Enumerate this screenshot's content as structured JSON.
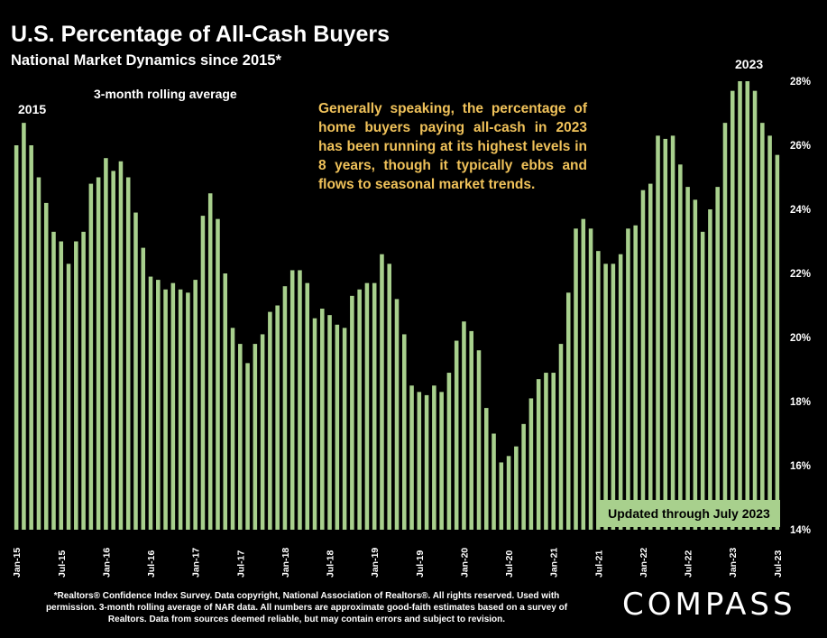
{
  "header": {
    "title": "U.S. Percentage of All-Cash Buyers",
    "subtitle": "National Market Dynamics since 2015*"
  },
  "annotations": {
    "label_2015": "2015",
    "label_2023": "2023",
    "rolling_avg": "3-month rolling average",
    "note": "Generally speaking, the percentage of home buyers paying all-cash in 2023 has been running at its highest levels in 8 years, though it typically ebbs and flows to seasonal market trends.",
    "updated": "Updated through July 2023"
  },
  "footer": {
    "footnote": "*Realtors® Confidence Index Survey. Data copyright, National Association of Realtors®. All rights reserved. Used with permission. 3-month rolling average of NAR data. All numbers are approximate good-faith estimates based on a survey of Realtors. Data from sources deemed reliable, but may contain errors and subject to revision.",
    "logo": "COMPASS"
  },
  "colors": {
    "bar": "#a8d08d",
    "background": "#000000",
    "note_text": "#f0c25a"
  },
  "chart_data": {
    "type": "bar",
    "title": "U.S. Percentage of All-Cash Buyers",
    "subtitle": "National Market Dynamics since 2015*",
    "ylabel": "",
    "ylim": [
      14,
      28
    ],
    "yticks": [
      "14%",
      "16%",
      "18%",
      "20%",
      "22%",
      "24%",
      "26%",
      "28%"
    ],
    "y_axis_side": "right",
    "grid": false,
    "xtick_labels": [
      "Jan-15",
      "Jul-15",
      "Jan-16",
      "Jul-16",
      "Jan-17",
      "Jul-17",
      "Jan-18",
      "Jul-18",
      "Jan-19",
      "Jul-19",
      "Jan-20",
      "Jul-20",
      "Jan-21",
      "Jul-21",
      "Jan-22",
      "Jul-22",
      "Jan-23",
      "Jul-23"
    ],
    "categories": [
      "Jan-15",
      "Feb-15",
      "Mar-15",
      "Apr-15",
      "May-15",
      "Jun-15",
      "Jul-15",
      "Aug-15",
      "Sep-15",
      "Oct-15",
      "Nov-15",
      "Dec-15",
      "Jan-16",
      "Feb-16",
      "Mar-16",
      "Apr-16",
      "May-16",
      "Jun-16",
      "Jul-16",
      "Aug-16",
      "Sep-16",
      "Oct-16",
      "Nov-16",
      "Dec-16",
      "Jan-17",
      "Feb-17",
      "Mar-17",
      "Apr-17",
      "May-17",
      "Jun-17",
      "Jul-17",
      "Aug-17",
      "Sep-17",
      "Oct-17",
      "Nov-17",
      "Dec-17",
      "Jan-18",
      "Feb-18",
      "Mar-18",
      "Apr-18",
      "May-18",
      "Jun-18",
      "Jul-18",
      "Aug-18",
      "Sep-18",
      "Oct-18",
      "Nov-18",
      "Dec-18",
      "Jan-19",
      "Feb-19",
      "Mar-19",
      "Apr-19",
      "May-19",
      "Jun-19",
      "Jul-19",
      "Aug-19",
      "Sep-19",
      "Oct-19",
      "Nov-19",
      "Dec-19",
      "Jan-20",
      "Feb-20",
      "Mar-20",
      "Apr-20",
      "May-20",
      "Jun-20",
      "Jul-20",
      "Aug-20",
      "Sep-20",
      "Oct-20",
      "Nov-20",
      "Dec-20",
      "Jan-21",
      "Feb-21",
      "Mar-21",
      "Apr-21",
      "May-21",
      "Jun-21",
      "Jul-21",
      "Aug-21",
      "Sep-21",
      "Oct-21",
      "Nov-21",
      "Dec-21",
      "Jan-22",
      "Feb-22",
      "Mar-22",
      "Apr-22",
      "May-22",
      "Jun-22",
      "Jul-22",
      "Aug-22",
      "Sep-22",
      "Oct-22",
      "Nov-22",
      "Dec-22",
      "Jan-23",
      "Feb-23",
      "Mar-23",
      "Apr-23",
      "May-23",
      "Jun-23",
      "Jul-23"
    ],
    "values": [
      26.0,
      26.7,
      26.0,
      25.0,
      24.2,
      23.3,
      23.0,
      22.3,
      23.0,
      23.3,
      24.8,
      25.0,
      25.6,
      25.2,
      25.5,
      25.0,
      23.9,
      22.8,
      21.9,
      21.8,
      21.5,
      21.7,
      21.5,
      21.4,
      21.8,
      23.8,
      24.5,
      23.7,
      22.0,
      20.3,
      19.8,
      19.2,
      19.8,
      20.1,
      20.8,
      21.0,
      21.6,
      22.1,
      22.1,
      21.7,
      20.6,
      20.9,
      20.7,
      20.4,
      20.3,
      21.3,
      21.5,
      21.7,
      21.7,
      22.6,
      22.3,
      21.2,
      20.1,
      18.5,
      18.3,
      18.2,
      18.5,
      18.3,
      18.9,
      19.9,
      20.5,
      20.2,
      19.6,
      17.8,
      17.0,
      16.1,
      16.3,
      16.6,
      17.3,
      18.1,
      18.7,
      18.9,
      18.9,
      19.8,
      21.4,
      23.4,
      23.7,
      23.4,
      22.7,
      22.3,
      22.3,
      22.6,
      23.4,
      23.5,
      24.6,
      24.8,
      26.3,
      26.2,
      26.3,
      25.4,
      24.7,
      24.3,
      23.3,
      24.0,
      24.7,
      26.7,
      27.7,
      28.0,
      28.0,
      27.7,
      26.7,
      26.3,
      25.7
    ]
  }
}
